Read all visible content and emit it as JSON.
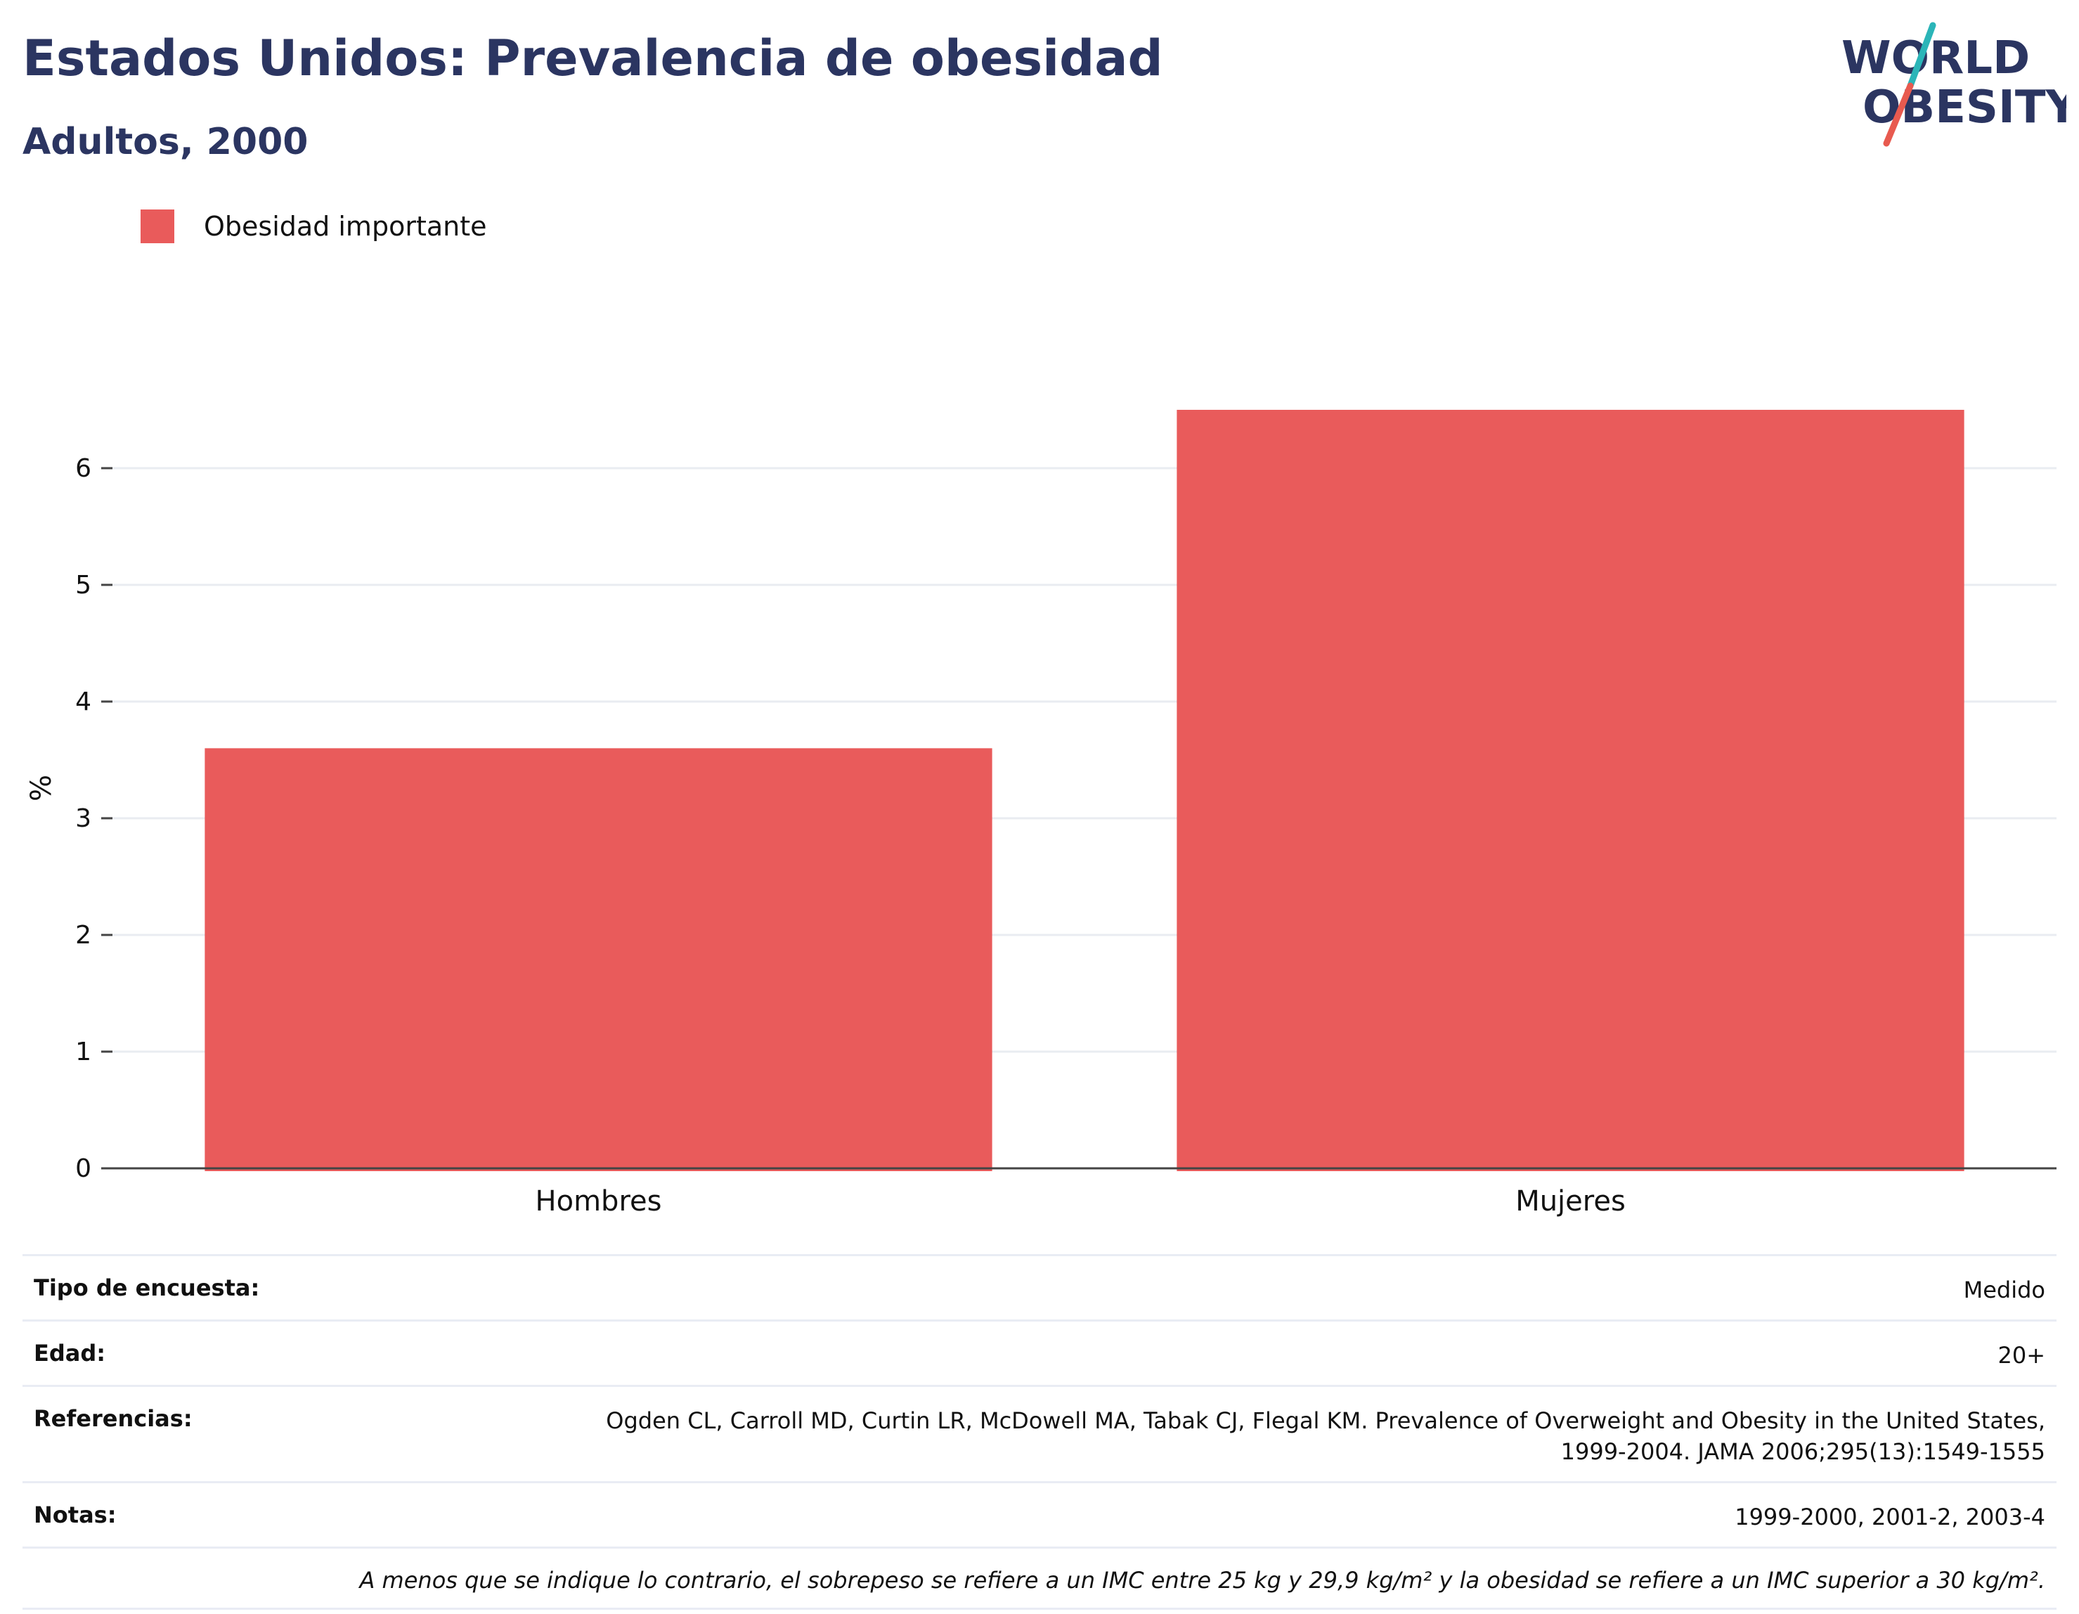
{
  "title": "Estados Unidos: Prevalencia de obesidad",
  "subtitle": "Adultos, 2000",
  "logo": {
    "line1": "WORLD",
    "line2": "OBESITY",
    "colors": {
      "text": "#2b3561",
      "slash_top": "#2bb5b8",
      "slash_bottom": "#e85a4f"
    }
  },
  "legend": {
    "label": "Obesidad importante",
    "color": "#e95b5b"
  },
  "chart_data": {
    "type": "bar",
    "categories": [
      "Hombres",
      "Mujeres"
    ],
    "series": [
      {
        "name": "Obesidad importante",
        "values": [
          3.6,
          6.5
        ],
        "color": "#e95b5b"
      }
    ],
    "ylabel": "%",
    "xlabel": "",
    "ylim": [
      0,
      7
    ],
    "yticks": [
      0,
      1,
      2,
      3,
      4,
      5,
      6
    ],
    "grid": true
  },
  "meta": {
    "survey_type": {
      "label": "Tipo de encuesta:",
      "value": "Medido"
    },
    "age": {
      "label": "Edad:",
      "value": "20+"
    },
    "references": {
      "label": "Referencias:",
      "value_line1": "Ogden CL, Carroll MD, Curtin LR, McDowell MA, Tabak CJ, Flegal KM. Prevalence of Overweight and Obesity in the United States,",
      "value_line2": "1999-2004. JAMA 2006;295(13):1549-1555"
    },
    "notes": {
      "label": "Notas:",
      "value": "1999-2000, 2001-2, 2003-4"
    },
    "footnote": "A menos que se indique lo contrario, el sobrepeso se refiere a un IMC entre 25 kg y 29,9 kg/m² y la obesidad se refiere a un IMC superior a 30 kg/m²."
  }
}
